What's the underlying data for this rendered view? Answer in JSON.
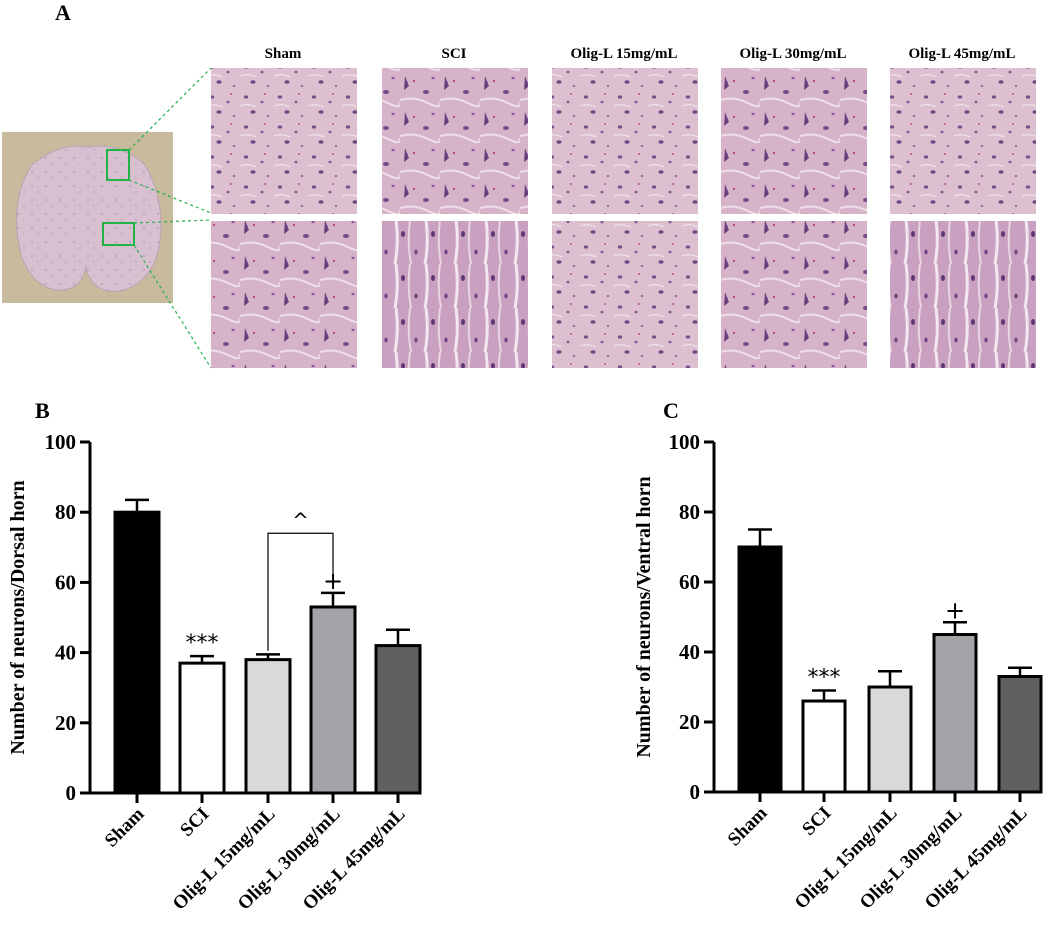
{
  "panels": {
    "a": "A",
    "b": "B",
    "c": "C"
  },
  "histology": {
    "columns": [
      "Sham",
      "SCI",
      "Olig-L 15mg/mL",
      "Olig-L 30mg/mL",
      "Olig-L 45mg/mL"
    ],
    "rows": [
      "dorsal",
      "ventral"
    ]
  },
  "colors": {
    "sham": "#000000",
    "sci": "#ffffff",
    "olig15": "#d9d9d9",
    "olig30": "#a3a3a8",
    "olig45": "#5f5f5f",
    "tissue": "#d7b9c7",
    "highlight_box": "#1fb34a"
  },
  "chart_data": [
    {
      "type": "bar",
      "categories": [
        "Sham",
        "SCI",
        "Olig-L 15mg/mL",
        "Olig-L 30mg/mL",
        "Olig-L 45mg/mL"
      ],
      "values": [
        80,
        37,
        38,
        53,
        42
      ],
      "errors": [
        3.5,
        2,
        1.5,
        4,
        4.5
      ],
      "ylabel": "Number of neurons/Dorsal horn",
      "ylim": [
        0,
        100
      ],
      "yticks": [
        "0",
        "20",
        "40",
        "60",
        "80",
        "100"
      ],
      "annotations": [
        {
          "category": "SCI",
          "text": "***"
        },
        {
          "category": "Olig-L 30mg/mL",
          "text": "+"
        },
        {
          "between": [
            "Olig-L 15mg/mL",
            "Olig-L 30mg/mL"
          ],
          "text": "^"
        }
      ]
    },
    {
      "type": "bar",
      "categories": [
        "Sham",
        "SCI",
        "Olig-L 15mg/mL",
        "Olig-L 30mg/mL",
        "Olig-L 45mg/mL"
      ],
      "values": [
        70,
        26,
        30,
        45,
        33
      ],
      "errors": [
        5,
        3,
        4.5,
        3.5,
        2.5
      ],
      "ylabel": "Number of neurons/Ventral horn",
      "ylim": [
        0,
        100
      ],
      "yticks": [
        "0",
        "20",
        "40",
        "60",
        "80",
        "100"
      ],
      "annotations": [
        {
          "category": "SCI",
          "text": "***"
        },
        {
          "category": "Olig-L 30mg/mL",
          "text": "+"
        }
      ]
    }
  ]
}
